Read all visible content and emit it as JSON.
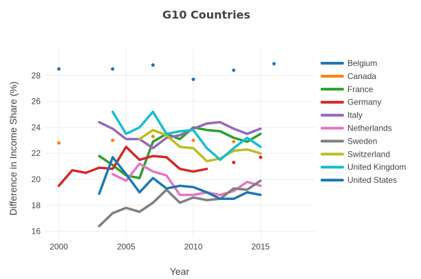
{
  "chart_data": {
    "type": "line",
    "title": "G10 Countries",
    "xlabel": "Year",
    "ylabel": "Difference in Income Share (%)",
    "xlim": [
      1999,
      2019
    ],
    "ylim": [
      15.5,
      30
    ],
    "xticks": [
      2000,
      2005,
      2010,
      2015
    ],
    "yticks": [
      16,
      18,
      20,
      22,
      24,
      26,
      28
    ],
    "grid": true,
    "legend": "right",
    "series": [
      {
        "name": "Belgium",
        "color": "#1f77b4",
        "mode": "markers",
        "x": [
          2000,
          2004,
          2007,
          2010,
          2013,
          2016
        ],
        "y": [
          28.5,
          28.5,
          28.8,
          27.7,
          28.4,
          28.9
        ]
      },
      {
        "name": "Canada",
        "color": "#ff7f0e",
        "mode": "markers",
        "x": [
          2000,
          2004,
          2007,
          2010,
          2013
        ],
        "y": [
          22.8,
          23.0,
          23.3,
          23.0,
          22.9
        ]
      },
      {
        "name": "France",
        "color": "#2ca02c",
        "mode": "lines",
        "x": [
          2003,
          2004,
          2005,
          2006,
          2007,
          2008,
          2009,
          2010,
          2011,
          2012,
          2013,
          2014,
          2015
        ],
        "y": [
          21.8,
          21.1,
          20.3,
          20.1,
          22.9,
          23.5,
          23.1,
          24.0,
          23.8,
          23.7,
          23.2,
          22.9,
          23.5
        ]
      },
      {
        "name": "Germany",
        "color": "#d62728",
        "mode": "lines",
        "x": [
          2000,
          2001,
          2002,
          2003,
          2004,
          2005,
          2006,
          2007,
          2008,
          2009,
          2010,
          2011
        ],
        "y": [
          19.5,
          20.7,
          20.5,
          20.9,
          20.8,
          22.5,
          21.5,
          21.8,
          21.7,
          20.8,
          20.6,
          20.8
        ]
      },
      {
        "name": "Germany (markers)",
        "color": "#d62728",
        "mode": "markers",
        "x": [
          2013,
          2015
        ],
        "y": [
          21.3,
          21.7
        ]
      },
      {
        "name": "Italy",
        "color": "#9467bd",
        "mode": "lines",
        "x": [
          2003,
          2004,
          2005,
          2006,
          2007,
          2008,
          2009,
          2010,
          2011,
          2012,
          2013,
          2014,
          2015
        ],
        "y": [
          24.4,
          23.9,
          23.1,
          23.1,
          22.4,
          23.2,
          23.4,
          23.9,
          24.3,
          24.4,
          23.9,
          23.5,
          23.9
        ]
      },
      {
        "name": "Netherlands",
        "color": "#e377c2",
        "mode": "lines",
        "x": [
          2004,
          2005,
          2006,
          2007,
          2008,
          2009,
          2010,
          2011,
          2012,
          2013,
          2014,
          2015
        ],
        "y": [
          20.4,
          19.9,
          21.2,
          20.6,
          20.3,
          18.8,
          18.8,
          19.0,
          18.8,
          19.1,
          19.8,
          19.5
        ]
      },
      {
        "name": "Sweden",
        "color": "#7f7f7f",
        "mode": "lines",
        "x": [
          2003,
          2004,
          2005,
          2006,
          2007,
          2008,
          2009,
          2010,
          2011,
          2012,
          2013,
          2014,
          2015
        ],
        "y": [
          16.4,
          17.4,
          17.8,
          17.5,
          18.2,
          19.2,
          18.2,
          18.6,
          18.4,
          18.5,
          19.3,
          19.2,
          19.9
        ]
      },
      {
        "name": "Switzerland",
        "color": "#bcbd22",
        "mode": "lines",
        "x": [
          2006,
          2007,
          2008,
          2009,
          2010,
          2011,
          2012,
          2013,
          2014,
          2015
        ],
        "y": [
          23.1,
          23.8,
          23.4,
          22.5,
          22.4,
          21.4,
          21.6,
          22.2,
          22.3,
          22.0
        ]
      },
      {
        "name": "United Kingdom",
        "color": "#17becf",
        "mode": "lines",
        "x": [
          2004,
          2005,
          2006,
          2007,
          2008,
          2009,
          2010,
          2011,
          2012,
          2013,
          2014,
          2015
        ],
        "y": [
          25.2,
          23.5,
          24.0,
          25.2,
          23.5,
          23.7,
          23.8,
          22.4,
          21.5,
          22.4,
          23.2,
          22.5
        ]
      },
      {
        "name": "United States",
        "color": "#1f77b4",
        "mode": "lines",
        "x": [
          2003,
          2004,
          2005,
          2006,
          2007,
          2008,
          2009,
          2010,
          2011,
          2012,
          2013,
          2014,
          2015
        ],
        "y": [
          18.9,
          21.7,
          20.4,
          19.0,
          20.1,
          19.3,
          19.5,
          19.4,
          19.0,
          18.5,
          18.5,
          19.0,
          18.8
        ]
      }
    ]
  },
  "legend_items": [
    {
      "name": "Belgium",
      "color": "#1f77b4"
    },
    {
      "name": "Canada",
      "color": "#ff7f0e"
    },
    {
      "name": "France",
      "color": "#2ca02c"
    },
    {
      "name": "Germany",
      "color": "#d62728"
    },
    {
      "name": "Italy",
      "color": "#9467bd"
    },
    {
      "name": "Netherlands",
      "color": "#e377c2"
    },
    {
      "name": "Sweden",
      "color": "#7f7f7f"
    },
    {
      "name": "Switzerland",
      "color": "#bcbd22"
    },
    {
      "name": "United Kingdom",
      "color": "#17becf"
    },
    {
      "name": "United States",
      "color": "#1f77b4"
    }
  ]
}
